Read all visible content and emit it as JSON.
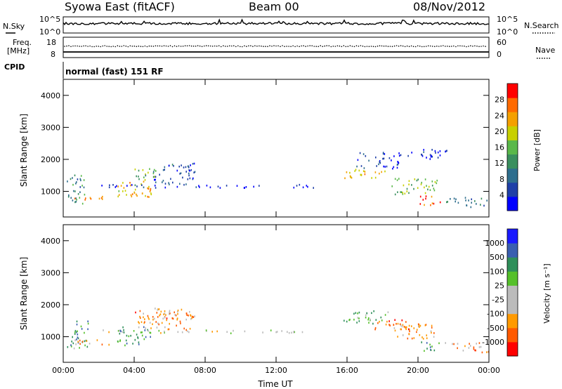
{
  "header": {
    "title": "Syowa East (fitACF)",
    "beam": "Beam 00",
    "date": "08/Nov/2012"
  },
  "noise_panel": {
    "left_label": "N.Sky",
    "right_label": "N.Search",
    "left_top_tick": "10^5",
    "left_bottom_tick": "10^0",
    "right_top_tick": "10^5",
    "right_bottom_tick": "10^0"
  },
  "freq_panel": {
    "label_line1": "Freq.",
    "label_line2": "[MHz]",
    "tick_top": "18",
    "tick_bottom": "8",
    "right_label": "Nave",
    "right_tick_top": "60",
    "right_tick_bottom": "0"
  },
  "cpid": {
    "label": "CPID",
    "text": "normal (fast) 151 RF"
  },
  "axes": {
    "ylabel": "Slant Range [km]",
    "xlabel": "Time UT"
  },
  "colors": {
    "power_scale": [
      "#0000ff",
      "#1f3fa8",
      "#2e6e8e",
      "#3a8f5e",
      "#5ab84a",
      "#c8d000",
      "#f5a000",
      "#ff6a00",
      "#ff0000"
    ],
    "velocity_scale": [
      "#ff0000",
      "#ff5a00",
      "#ff9a00",
      "#bbbbbb",
      "#bbbbbb",
      "#55c02a",
      "#2f8f5a",
      "#3a5fb0",
      "#1a1aff"
    ]
  },
  "chart_data": [
    {
      "type": "heatmap",
      "name": "power",
      "ylabel": "Slant Range [km]",
      "xlabel": "",
      "x_ticks": [
        "00:00",
        "04:00",
        "08:00",
        "12:00",
        "16:00",
        "20:00",
        "00:00"
      ],
      "y_ticks": [
        1000,
        2000,
        3000,
        4000
      ],
      "ylim": [
        200,
        4500
      ],
      "xlim_hours": [
        0,
        24
      ],
      "colorbar": {
        "label": "Power [dB]",
        "ticks": [
          "4",
          "8",
          "12",
          "16",
          "20",
          "24",
          "28"
        ],
        "range": [
          0,
          32
        ]
      },
      "regions": [
        {
          "t0": 0.2,
          "t1": 1.4,
          "r0": 600,
          "r1": 1500,
          "level": 0.35
        },
        {
          "t0": 0.6,
          "t1": 2.2,
          "r0": 700,
          "r1": 900,
          "level": 0.8
        },
        {
          "t0": 3.0,
          "t1": 5.0,
          "r0": 700,
          "r1": 1300,
          "level": 0.7
        },
        {
          "t0": 4.0,
          "t1": 5.2,
          "r0": 1100,
          "r1": 1700,
          "level": 0.45
        },
        {
          "t0": 5.0,
          "t1": 7.4,
          "r0": 1200,
          "r1": 1900,
          "level": 0.2
        },
        {
          "t0": 2.0,
          "t1": 14.4,
          "r0": 1100,
          "r1": 1200,
          "level": 0.1
        },
        {
          "t0": 15.8,
          "t1": 18.4,
          "r0": 1400,
          "r1": 1700,
          "level": 0.65
        },
        {
          "t0": 16.5,
          "t1": 19.0,
          "r0": 1700,
          "r1": 2200,
          "level": 0.15
        },
        {
          "t0": 18.5,
          "t1": 21.2,
          "r0": 900,
          "r1": 1400,
          "level": 0.5
        },
        {
          "t0": 20.0,
          "t1": 21.3,
          "r0": 550,
          "r1": 850,
          "level": 0.9
        },
        {
          "t0": 21.5,
          "t1": 24.0,
          "r0": 500,
          "r1": 800,
          "level": 0.3
        },
        {
          "t0": 18.8,
          "t1": 21.6,
          "r0": 2000,
          "r1": 2300,
          "level": 0.12
        }
      ]
    },
    {
      "type": "heatmap",
      "name": "velocity",
      "ylabel": "Slant Range [km]",
      "xlabel": "Time UT",
      "x_ticks": [
        "00:00",
        "04:00",
        "08:00",
        "12:00",
        "16:00",
        "20:00",
        "00:00"
      ],
      "y_ticks": [
        1000,
        2000,
        3000,
        4000
      ],
      "ylim": [
        200,
        4500
      ],
      "xlim_hours": [
        0,
        24
      ],
      "colorbar": {
        "label": "Velocity [m s⁻¹]",
        "ticks": [
          "-1000",
          "-500",
          "-100",
          "-25",
          "25",
          "100",
          "500",
          "1000"
        ],
        "range": [
          -1250,
          1250
        ]
      },
      "regions": [
        {
          "t0": 0.2,
          "t1": 1.4,
          "r0": 600,
          "r1": 1500,
          "level": 0.7
        },
        {
          "t0": 0.6,
          "t1": 2.6,
          "r0": 700,
          "r1": 900,
          "level": 0.25
        },
        {
          "t0": 3.0,
          "t1": 5.0,
          "r0": 700,
          "r1": 1300,
          "level": 0.72
        },
        {
          "t0": 4.0,
          "t1": 7.4,
          "r0": 1200,
          "r1": 1800,
          "level": 0.25
        },
        {
          "t0": 5.0,
          "t1": 7.4,
          "r0": 1500,
          "r1": 1900,
          "level": 0.3
        },
        {
          "t0": 2.0,
          "t1": 14.4,
          "r0": 1100,
          "r1": 1200,
          "level": 0.45
        },
        {
          "t0": 15.8,
          "t1": 18.4,
          "r0": 1400,
          "r1": 1800,
          "level": 0.62
        },
        {
          "t0": 17.5,
          "t1": 19.5,
          "r0": 1200,
          "r1": 1600,
          "level": 0.2
        },
        {
          "t0": 18.5,
          "t1": 21.2,
          "r0": 900,
          "r1": 1400,
          "level": 0.25
        },
        {
          "t0": 20.0,
          "t1": 21.3,
          "r0": 550,
          "r1": 850,
          "level": 0.72
        },
        {
          "t0": 21.5,
          "t1": 24.0,
          "r0": 500,
          "r1": 800,
          "level": 0.25
        }
      ]
    }
  ]
}
